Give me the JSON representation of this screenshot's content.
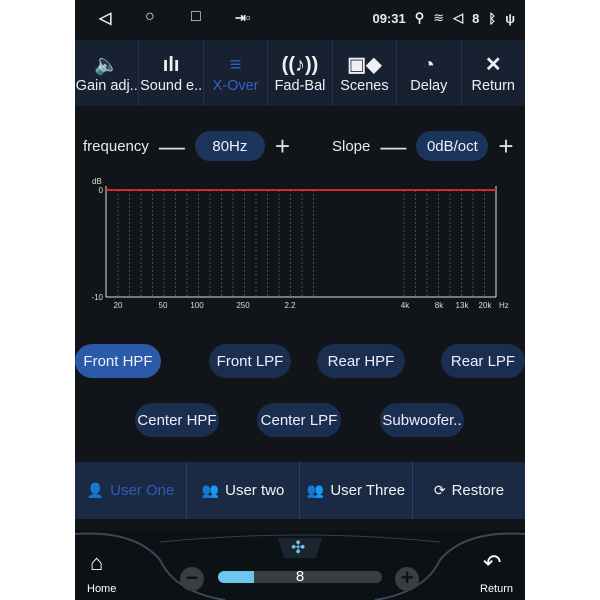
{
  "status": {
    "time": "09:31",
    "volume": "8",
    "icons": [
      "back-icon",
      "home-circle-icon",
      "recents-icon",
      "screen-cast-icon",
      "location-icon",
      "wifi-icon",
      "volume-icon",
      "bluetooth-icon",
      "usb-icon"
    ]
  },
  "tabs": [
    {
      "label": "Gain adj..",
      "icon": "speaker-icon",
      "glyph": "🔈"
    },
    {
      "label": "Sound e..",
      "icon": "waveform-icon",
      "glyph": "ılı"
    },
    {
      "label": "X-Over",
      "icon": "equalizer-bars-icon",
      "glyph": "≡"
    },
    {
      "label": "Fad-Bal",
      "icon": "seat-sound-icon",
      "glyph": "((♪))"
    },
    {
      "label": "Scenes",
      "icon": "scenes-grid-icon",
      "glyph": "▣◆"
    },
    {
      "label": "Delay",
      "icon": "timer-icon",
      "glyph": "◔"
    },
    {
      "label": "Return",
      "icon": "close-icon",
      "glyph": "✕"
    }
  ],
  "active_tab": "X-Over",
  "frequency": {
    "label": "frequency",
    "value": "80Hz",
    "minus": "—",
    "plus": "+"
  },
  "slope": {
    "label": "Slope",
    "value": "0dB/oct",
    "minus": "—",
    "plus": "+"
  },
  "chart_data": {
    "type": "line",
    "ylabel": "dB",
    "xlabel": "Hz",
    "ylim": [
      -10,
      0
    ],
    "yticks": [
      "0",
      "-10"
    ],
    "xticks": [
      "20",
      "50",
      "100",
      "250",
      "2.2",
      "4k",
      "8k",
      "13k",
      "20k"
    ],
    "grid": true,
    "series": [
      {
        "color": "#d02a2a",
        "values": [
          0,
          0,
          0,
          0,
          0,
          0,
          0,
          0,
          0
        ]
      }
    ]
  },
  "filters": {
    "row1": [
      "Front HPF",
      "Front LPF",
      "Rear HPF",
      "Rear LPF"
    ],
    "row2": [
      "Center HPF",
      "Center LPF",
      "Subwoofer.."
    ],
    "active": "Front HPF"
  },
  "users": [
    {
      "label": "User One",
      "icon": "user-icon"
    },
    {
      "label": "User two",
      "icon": "users-two-icon"
    },
    {
      "label": "User Three",
      "icon": "users-three-icon"
    },
    {
      "label": "Restore",
      "icon": "restore-icon"
    }
  ],
  "bottom": {
    "home": "Home",
    "return": "Return",
    "fan_level": "8",
    "fan_fraction": 0.22
  },
  "colors": {
    "accent": "#3163c4",
    "curve": "#d02a2a",
    "fan": "#6cc7ee"
  }
}
